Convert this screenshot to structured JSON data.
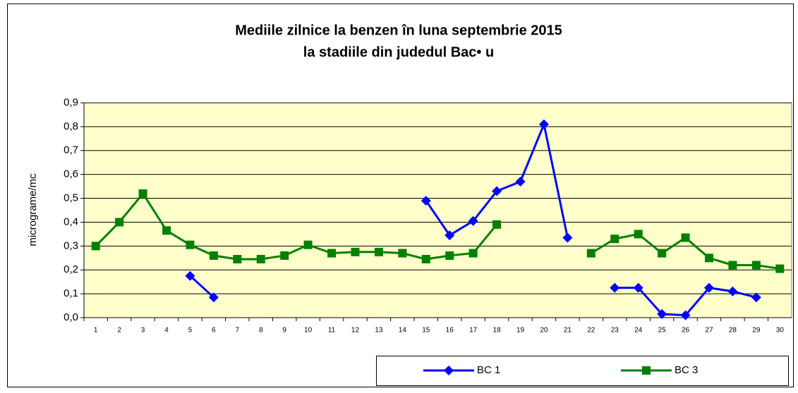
{
  "chart_data": {
    "type": "line",
    "title": "Mediile zilnice la benzen în luna septembrie 2015",
    "subtitle": "la stadiile din judedul Bac• u",
    "y_label": "micrograme/mc",
    "categories": [
      "1",
      "2",
      "3",
      "4",
      "5",
      "6",
      "7",
      "8",
      "9",
      "10",
      "11",
      "12",
      "13",
      "14",
      "15",
      "16",
      "17",
      "18",
      "19",
      "20",
      "21",
      "22",
      "23",
      "24",
      "25",
      "26",
      "27",
      "28",
      "29",
      "30"
    ],
    "series": [
      {
        "name": "BC 1",
        "color": "#0000ff",
        "marker": "diamond",
        "values": [
          null,
          null,
          null,
          null,
          0.175,
          0.085,
          null,
          null,
          null,
          null,
          null,
          null,
          null,
          null,
          0.49,
          0.345,
          0.405,
          0.53,
          0.57,
          0.81,
          0.335,
          null,
          0.125,
          0.125,
          0.015,
          0.01,
          0.125,
          0.11,
          0.085,
          null
        ]
      },
      {
        "name": "BC 3",
        "color": "#008000",
        "marker": "square",
        "values": [
          0.3,
          0.4,
          0.52,
          0.365,
          0.305,
          0.26,
          0.245,
          0.245,
          0.26,
          0.305,
          0.27,
          0.275,
          0.275,
          0.27,
          0.245,
          0.26,
          0.27,
          0.39,
          null,
          null,
          null,
          0.27,
          0.33,
          0.35,
          0.27,
          0.335,
          0.25,
          0.22,
          0.22,
          0.205
        ]
      }
    ],
    "ylim": [
      0,
      0.9
    ],
    "yticks": [
      {
        "value": 0,
        "label": "0,0"
      },
      {
        "value": 0.1,
        "label": "0,1"
      },
      {
        "value": 0.2,
        "label": "0,2"
      },
      {
        "value": 0.3,
        "label": "0,3"
      },
      {
        "value": 0.4,
        "label": "0,4"
      },
      {
        "value": 0.5,
        "label": "0,5"
      },
      {
        "value": 0.6,
        "label": "0,6"
      },
      {
        "value": 0.7,
        "label": "0,7"
      },
      {
        "value": 0.8,
        "label": "0,8"
      },
      {
        "value": 0.9,
        "label": "0,9"
      }
    ],
    "grid": true,
    "legend": "bottom-right",
    "plot_background": "#ffffcc"
  }
}
